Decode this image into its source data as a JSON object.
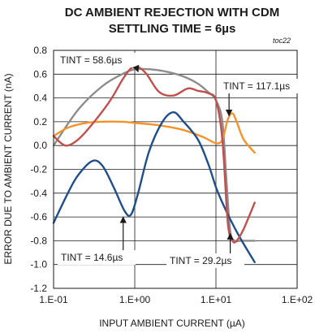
{
  "chart_data": {
    "type": "line",
    "title_line1": "DC AMBIENT REJECTION WITH CDM",
    "title_line2": "SETTLING TIME = 6µs",
    "tag": "toc22",
    "xlabel": "INPUT AMBIENT CURRENT (µA)",
    "ylabel": "ERROR DUE TO AMBIENT CURRENT (nA)",
    "x_scale": "log",
    "xlim": [
      0.1,
      100
    ],
    "ylim": [
      -1.2,
      0.8
    ],
    "x_ticks": [
      0.1,
      1,
      10,
      100
    ],
    "x_tick_labels": [
      "1.E-01",
      "1.E+00",
      "1.E+01",
      "1.E+02"
    ],
    "y_ticks": [
      -1.2,
      -1.0,
      -0.8,
      -0.6,
      -0.4,
      -0.2,
      0.0,
      0.2,
      0.4,
      0.6,
      0.8
    ],
    "y_tick_labels": [
      "-1.2",
      "-1.0",
      "-0.8",
      "-0.6",
      "-0.4",
      "-0.2",
      "0.0",
      "0.2",
      "0.4",
      "0.6",
      "0.8"
    ],
    "grid": "major",
    "series": [
      {
        "name": "TINT = 58.6µs",
        "color": "#8c8c8c",
        "x": [
          0.1,
          0.2,
          0.4,
          0.7,
          1.0,
          1.6,
          2.5,
          4.0,
          6.0,
          8.0,
          10.0,
          12.0,
          13.5,
          15.0,
          17.0,
          20.0,
          25.0,
          30.0
        ],
        "y": [
          0.0,
          0.3,
          0.5,
          0.6,
          0.64,
          0.64,
          0.62,
          0.58,
          0.52,
          0.45,
          0.38,
          0.2,
          -0.3,
          -0.72,
          -0.8,
          -0.8,
          -0.8,
          -0.8
        ]
      },
      {
        "name": "TINT = 117.1µs",
        "color": "#f5922a",
        "x": [
          0.1,
          0.15,
          0.25,
          0.4,
          0.7,
          1.0,
          2.0,
          4.0,
          7.0,
          10.0,
          12.0,
          14.0,
          16.0,
          18.0,
          22.0,
          30.0
        ],
        "y": [
          0.08,
          0.15,
          0.19,
          0.2,
          0.2,
          0.19,
          0.17,
          0.13,
          0.07,
          0.02,
          0.05,
          0.22,
          0.27,
          0.2,
          0.05,
          -0.06
        ]
      },
      {
        "name": "TINT = 14.6µs",
        "color": "#1f4e8c",
        "x": [
          0.1,
          0.15,
          0.2,
          0.3,
          0.4,
          0.55,
          0.75,
          0.9,
          1.1,
          1.5,
          2.2,
          3.0,
          4.0,
          6.0,
          8.0,
          10.0,
          12.0,
          15.0,
          20.0,
          30.0
        ],
        "y": [
          -0.65,
          -0.4,
          -0.25,
          -0.13,
          -0.17,
          -0.35,
          -0.55,
          -0.58,
          -0.4,
          -0.05,
          0.2,
          0.28,
          0.2,
          0.05,
          -0.15,
          -0.35,
          -0.48,
          -0.62,
          -0.78,
          -0.98
        ]
      },
      {
        "name": "TINT = 29.2µs",
        "color": "#c0504d",
        "x": [
          0.1,
          0.14,
          0.2,
          0.3,
          0.5,
          0.7,
          0.9,
          1.1,
          1.4,
          2.0,
          3.0,
          4.5,
          6.0,
          8.0,
          10.0,
          12.0,
          14.0,
          16.0,
          18.0,
          22.0,
          30.0
        ],
        "y": [
          0.08,
          0.0,
          0.05,
          0.18,
          0.38,
          0.55,
          0.65,
          0.66,
          0.6,
          0.45,
          0.42,
          0.48,
          0.46,
          0.44,
          0.38,
          0.05,
          -0.65,
          -0.8,
          -0.8,
          -0.7,
          -0.48
        ]
      }
    ],
    "annotations": [
      {
        "label": "TINT = 58.6µs",
        "arrow_to": [
          1.1,
          0.62
        ]
      },
      {
        "label": "TINT = 117.1µs",
        "arrow_to": [
          14.5,
          0.25
        ]
      },
      {
        "label": "TINT = 14.6µs",
        "arrow_to": [
          0.72,
          -0.6
        ]
      },
      {
        "label": "TINT = 29.2µs",
        "arrow_to": [
          15.0,
          -0.74
        ]
      }
    ]
  }
}
